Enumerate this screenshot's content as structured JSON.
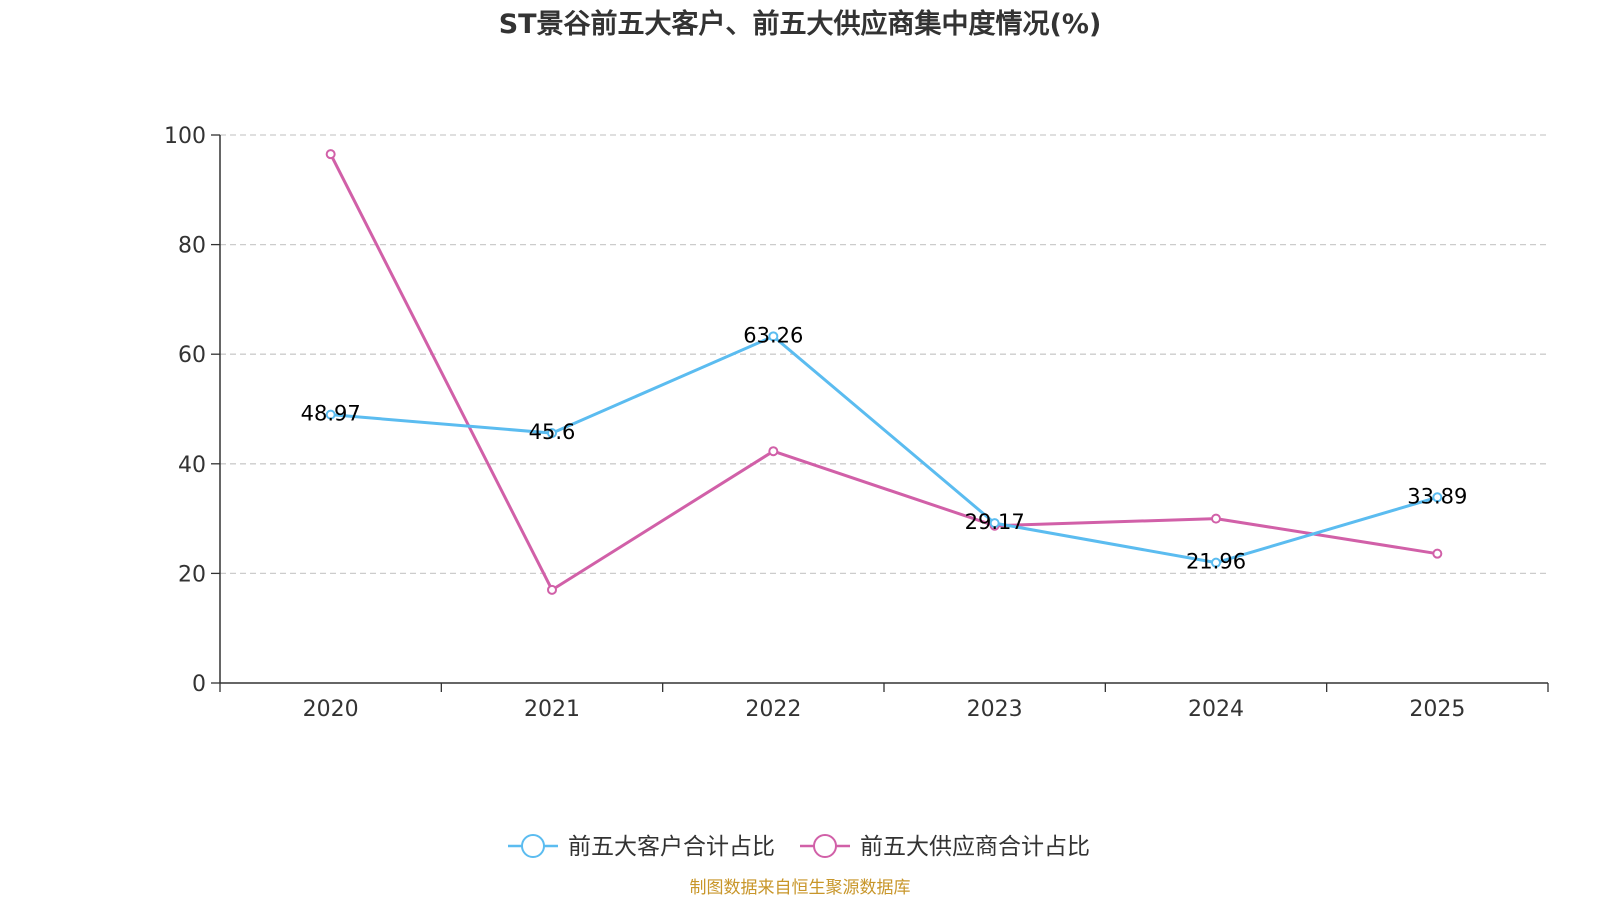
{
  "chart_data": {
    "type": "line",
    "title": "ST景谷前五大客户、前五大供应商集中度情况(%)",
    "categories": [
      "2020",
      "2021",
      "2022",
      "2023",
      "2024",
      "2025"
    ],
    "ylim": [
      0,
      100
    ],
    "yticks": [
      0,
      20,
      40,
      60,
      80,
      100
    ],
    "grid": true,
    "legend_position": "bottom",
    "series": [
      {
        "name": "前五大客户合计占比",
        "color": "#5bbcf0",
        "values": [
          48.97,
          45.6,
          63.26,
          29.17,
          21.96,
          33.89
        ],
        "labels": [
          "48.97",
          "45.6",
          "63.26",
          "29.17",
          "21.96",
          "33.89"
        ]
      },
      {
        "name": "前五大供应商合计占比",
        "color": "#d160a8",
        "values": [
          96.5,
          17,
          42.3,
          28.7,
          30,
          23.6
        ],
        "labels": []
      }
    ]
  },
  "source_note": "制图数据来自恒生聚源数据库",
  "source_color": "#c8962a"
}
